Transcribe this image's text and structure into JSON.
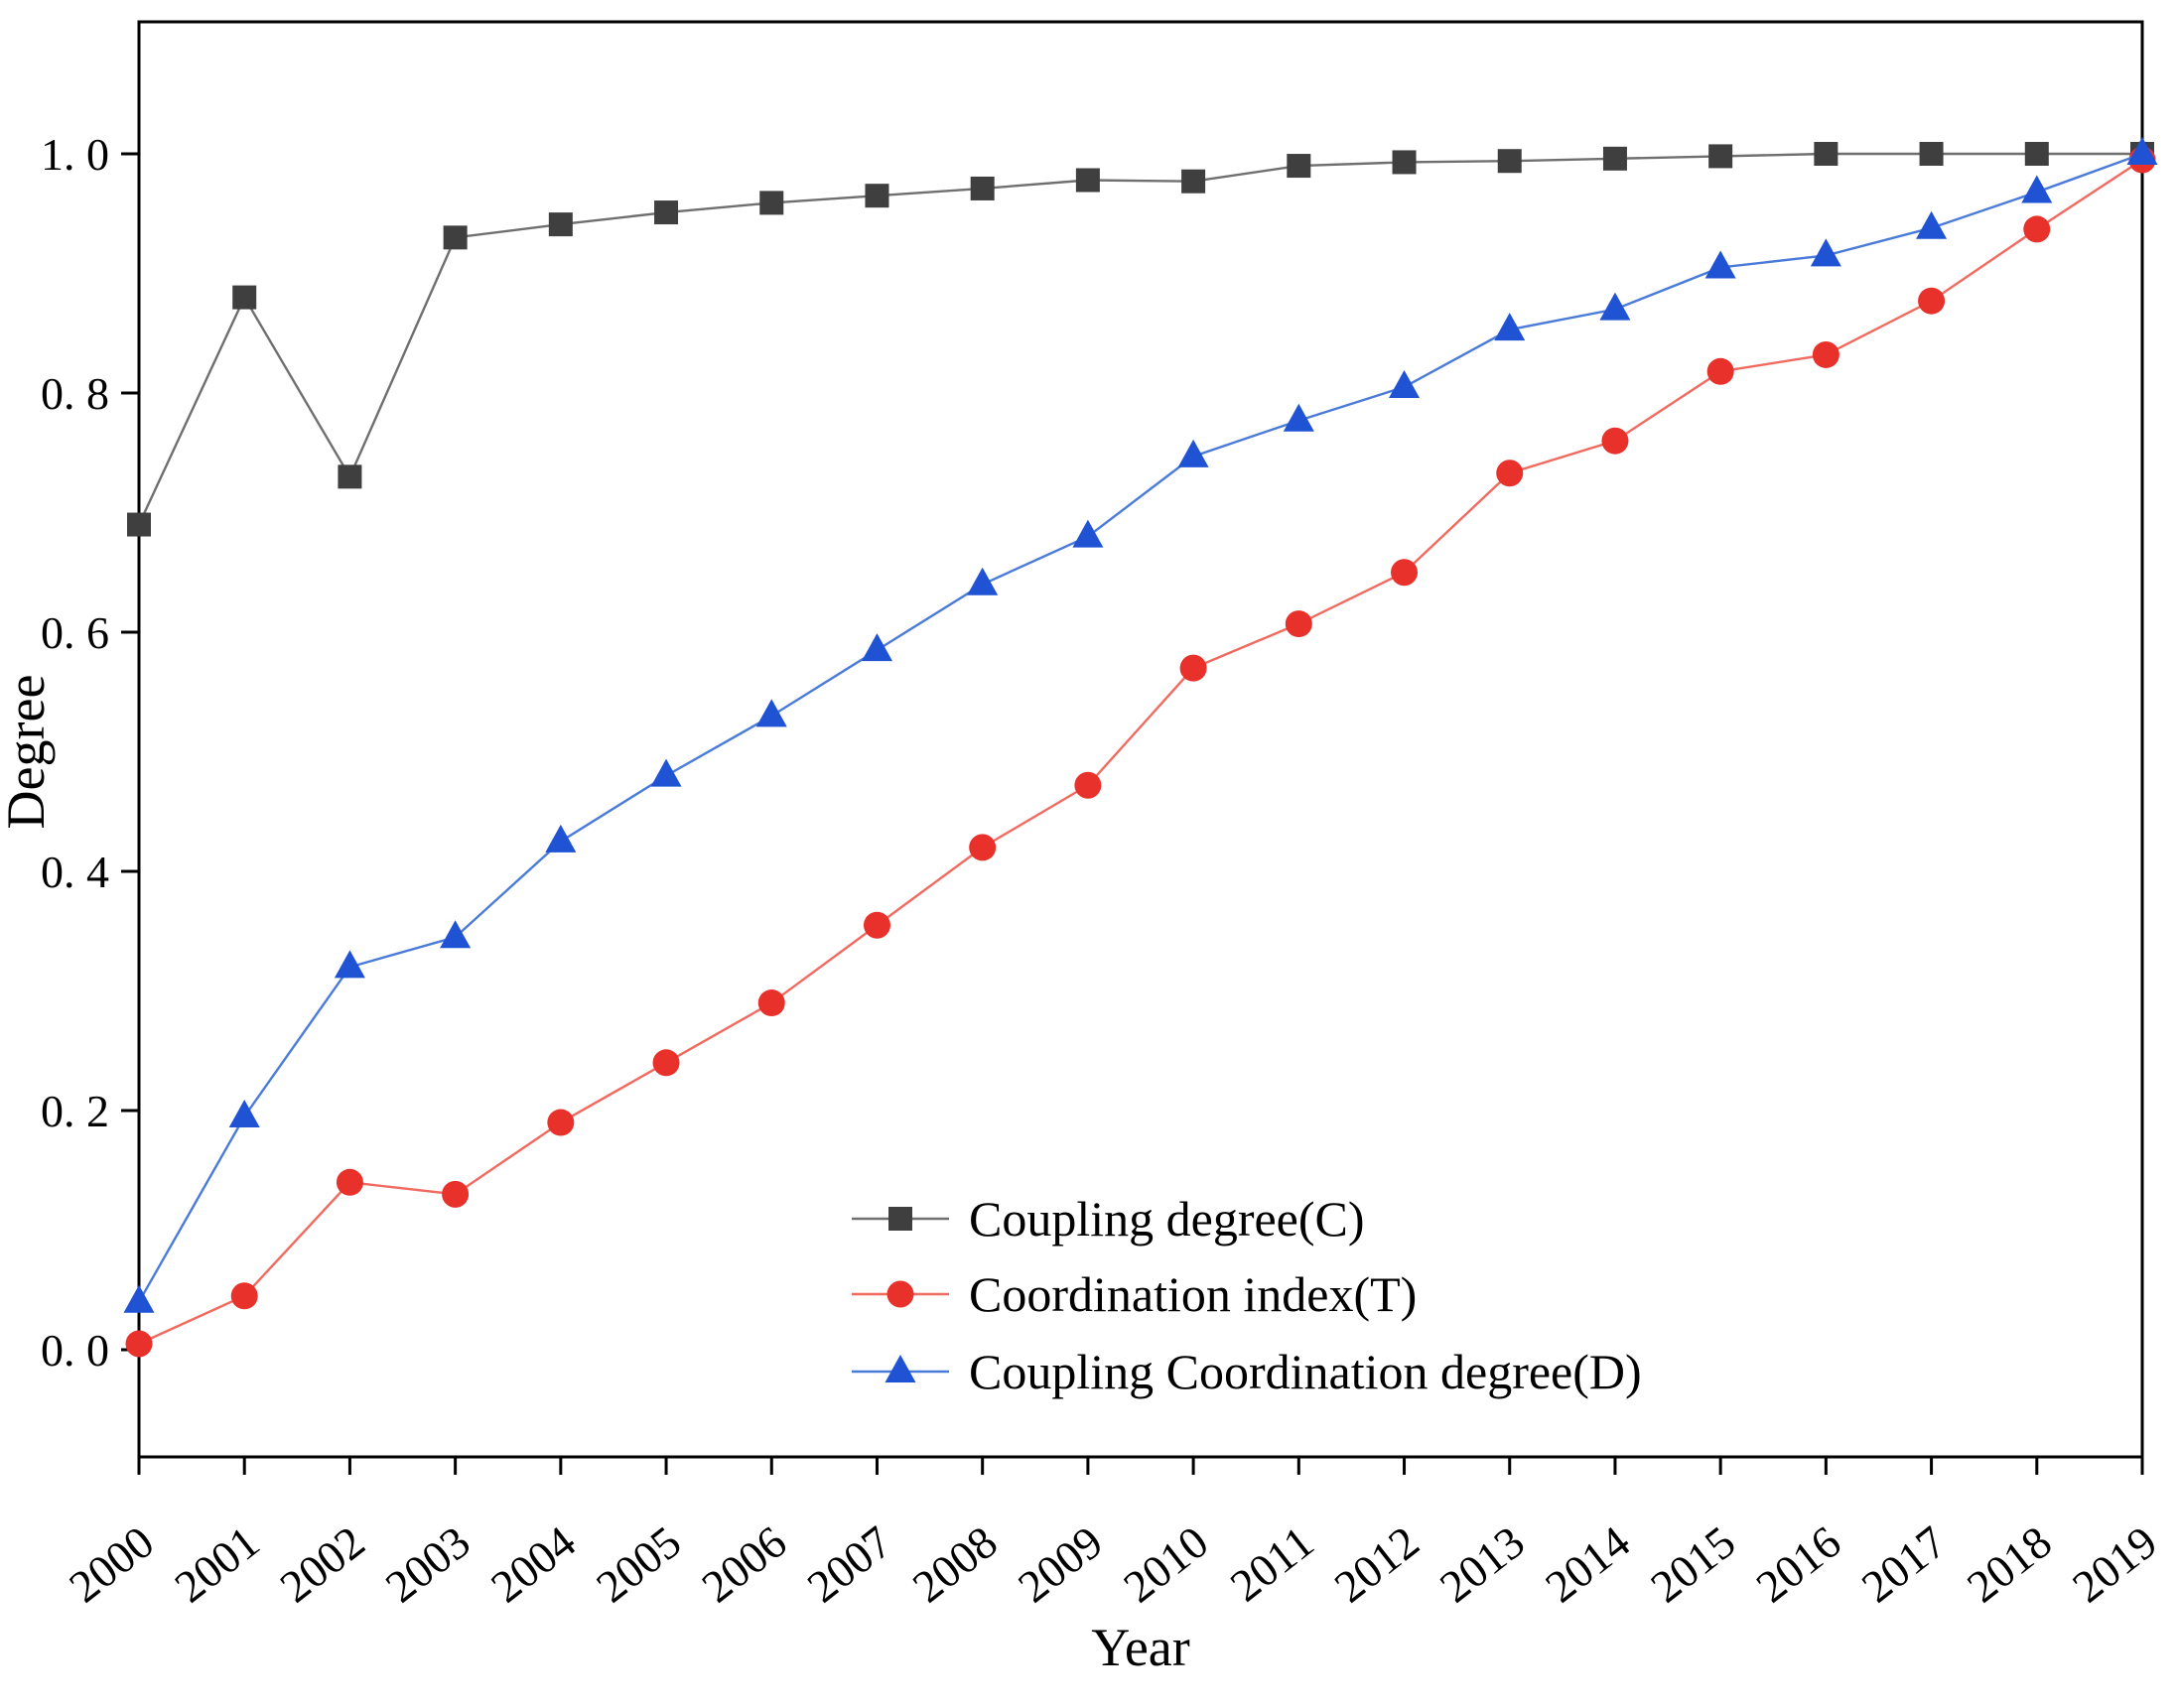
{
  "figure": {
    "background": "#ffffff",
    "axis_color": "#000000"
  },
  "chart_data": {
    "type": "line",
    "title": "",
    "xlabel": "Year",
    "ylabel": "Degree",
    "x": [
      2000,
      2001,
      2002,
      2003,
      2004,
      2005,
      2006,
      2007,
      2008,
      2009,
      2010,
      2011,
      2012,
      2013,
      2014,
      2015,
      2016,
      2017,
      2018,
      2019
    ],
    "xtick_labels": [
      "2000",
      "2001",
      "2002",
      "2003",
      "2004",
      "2005",
      "2006",
      "2007",
      "2008",
      "2009",
      "2010",
      "2011",
      "2012",
      "2013",
      "2014",
      "2015",
      "2016",
      "2017",
      "2018",
      "2019"
    ],
    "yticks": [
      0.0,
      0.2,
      0.4,
      0.6,
      0.8,
      1.0
    ],
    "ytick_labels": [
      "0. 0",
      "0. 2",
      "0. 4",
      "0. 6",
      "0. 8",
      "1. 0"
    ],
    "ylim": [
      -0.09,
      1.11
    ],
    "grid": false,
    "legend_position": "lower-right-inside",
    "series": [
      {
        "name": "Coupling degree(C)",
        "marker": "square",
        "marker_color": "#3f3f3f",
        "line_color": "#6f6f6f",
        "values": [
          0.69,
          0.88,
          0.73,
          0.93,
          0.941,
          0.951,
          0.959,
          0.965,
          0.971,
          0.978,
          0.977,
          0.99,
          0.993,
          0.994,
          0.996,
          0.998,
          1.0,
          1.0,
          1.0,
          1.0
        ]
      },
      {
        "name": "Coordination index(T)",
        "marker": "circle",
        "marker_color": "#e8312b",
        "line_color": "#f06a60",
        "values": [
          0.005,
          0.045,
          0.14,
          0.13,
          0.19,
          0.24,
          0.29,
          0.355,
          0.42,
          0.472,
          0.57,
          0.607,
          0.65,
          0.733,
          0.76,
          0.818,
          0.832,
          0.877,
          0.937,
          0.995
        ]
      },
      {
        "name": "Coupling Coordination degree(D)",
        "marker": "triangle",
        "marker_color": "#1f53d4",
        "line_color": "#4a7bd9",
        "values": [
          0.04,
          0.195,
          0.32,
          0.345,
          0.425,
          0.48,
          0.53,
          0.585,
          0.64,
          0.68,
          0.747,
          0.777,
          0.805,
          0.853,
          0.87,
          0.905,
          0.915,
          0.938,
          0.968,
          1.0
        ]
      }
    ]
  }
}
